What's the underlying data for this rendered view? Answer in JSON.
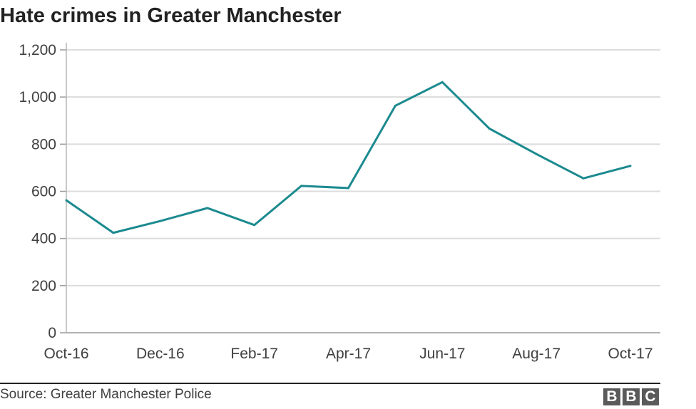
{
  "chart_data": {
    "type": "line",
    "title": "Hate crimes in Greater Manchester",
    "xlabel": "",
    "ylabel": "",
    "x": [
      "Oct-16",
      "Nov-16",
      "Dec-16",
      "Jan-17",
      "Feb-17",
      "Mar-17",
      "Apr-17",
      "May-17",
      "Jun-17",
      "Jul-17",
      "Aug-17",
      "Sep-17",
      "Oct-17"
    ],
    "x_tick_labels": [
      "Oct-16",
      "Dec-16",
      "Feb-17",
      "Apr-17",
      "Jun-17",
      "Aug-17",
      "Oct-17"
    ],
    "series": [
      {
        "values": [
          562,
          424,
          474,
          529,
          457,
          623,
          614,
          963,
          1063,
          866,
          758,
          655,
          708
        ],
        "color": "#1b8a8f"
      }
    ],
    "ylim": [
      0,
      1200
    ],
    "y_ticks": [
      0,
      200,
      400,
      600,
      800,
      1000,
      1200
    ],
    "y_tick_labels": [
      "0",
      "200",
      "400",
      "600",
      "800",
      "1,000",
      "1,200"
    ],
    "grid": true,
    "gridline_color": "#dcdcdc"
  },
  "footer": {
    "source": "Source: Greater Manchester Police",
    "logo_letters": [
      "B",
      "B",
      "C"
    ]
  }
}
